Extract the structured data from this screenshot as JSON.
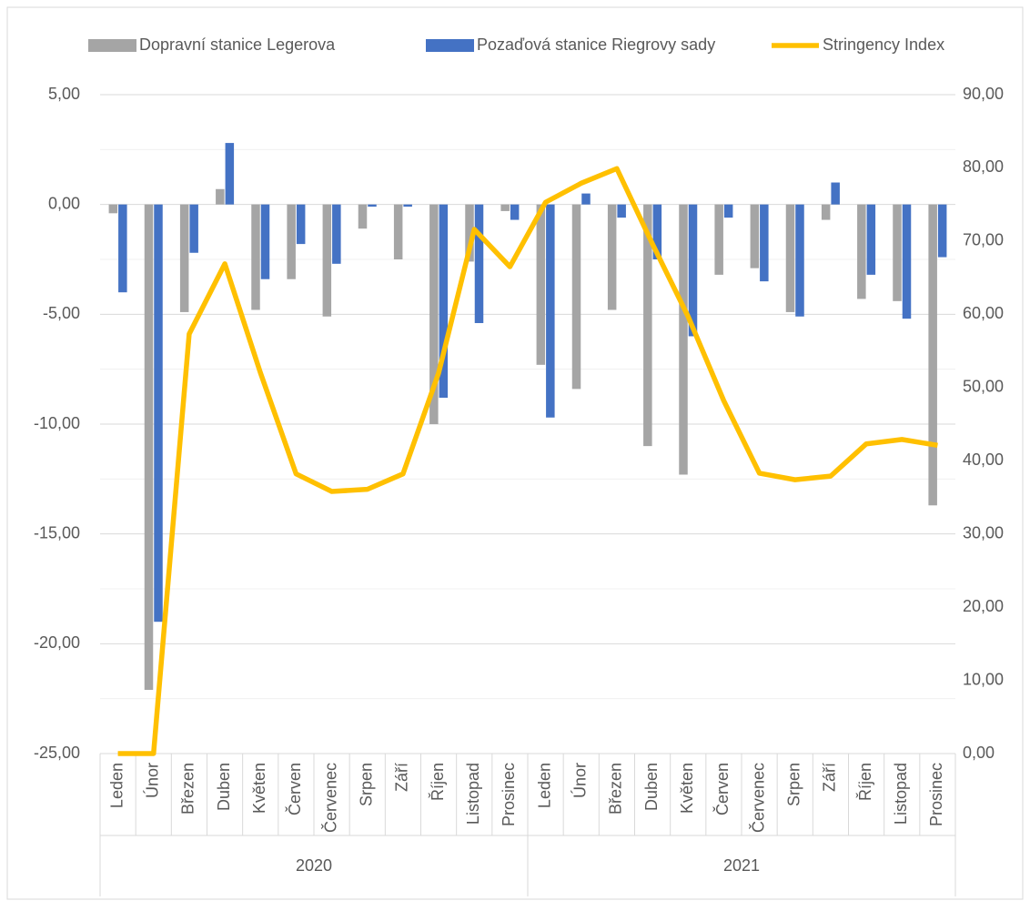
{
  "chart_data": {
    "type": "combo",
    "categories": [
      "Leden",
      "Únor",
      "Březen",
      "Duben",
      "Květen",
      "Červen",
      "Červenec",
      "Srpen",
      "Září",
      "Říjen",
      "Listopad",
      "Prosinec",
      "Leden",
      "Únor",
      "Březen",
      "Duben",
      "Květen",
      "Červen",
      "Červenec",
      "Srpen",
      "Září",
      "Říjen",
      "Listopad",
      "Prosinec"
    ],
    "groups": [
      "2020",
      "2021"
    ],
    "series": [
      {
        "name": "Dopravní stanice Legerova",
        "type": "bar",
        "color": "#a5a5a5",
        "values": [
          -0.4,
          -22.1,
          -4.9,
          0.7,
          -4.8,
          -3.4,
          -5.1,
          -1.1,
          -2.5,
          -10.0,
          -2.6,
          -0.3,
          -7.3,
          -8.4,
          -4.8,
          -11.0,
          -12.3,
          -3.2,
          -2.9,
          -4.9,
          -0.7,
          -4.3,
          -4.4,
          -13.7
        ]
      },
      {
        "name": "Pozaďová stanice Riegrovy sady",
        "type": "bar",
        "color": "#4472c4",
        "values": [
          -4.0,
          -19.0,
          -2.2,
          2.8,
          -3.4,
          -1.8,
          -2.7,
          -0.1,
          -0.1,
          -8.8,
          -5.4,
          -0.7,
          -9.7,
          0.5,
          -0.6,
          -2.5,
          -6.0,
          -0.6,
          -3.5,
          -5.1,
          1.0,
          -3.2,
          -5.2,
          -2.4
        ]
      },
      {
        "name": "Stringency Index",
        "type": "line",
        "axis": "y2",
        "color": "#ffc000",
        "values": [
          0,
          0,
          57.3,
          66.9,
          52.0,
          38.2,
          35.8,
          36.1,
          38.2,
          52.0,
          71.6,
          66.5,
          75.3,
          77.9,
          79.9,
          69.6,
          59.7,
          48.2,
          38.3,
          37.4,
          37.9,
          42.3,
          42.9,
          42.1
        ]
      }
    ],
    "ylim": [
      -25,
      5
    ],
    "yticks": [
      {
        "value": 5,
        "label": "5,00"
      },
      {
        "value": 0,
        "label": "0,00"
      },
      {
        "value": -5,
        "label": "-5,00"
      },
      {
        "value": -10,
        "label": "-10,00"
      },
      {
        "value": -15,
        "label": "-15,00"
      },
      {
        "value": -20,
        "label": "-20,00"
      },
      {
        "value": -25,
        "label": "-25,00"
      }
    ],
    "minor_yticks": [
      2.5,
      -2.5,
      -7.5,
      -12.5,
      -17.5,
      -22.5
    ],
    "y2lim": [
      0,
      90
    ],
    "y2ticks": [
      {
        "value": 90,
        "label": "90,00"
      },
      {
        "value": 80,
        "label": "80,00"
      },
      {
        "value": 70,
        "label": "70,00"
      },
      {
        "value": 60,
        "label": "60,00"
      },
      {
        "value": 50,
        "label": "50,00"
      },
      {
        "value": 40,
        "label": "40,00"
      },
      {
        "value": 30,
        "label": "30,00"
      },
      {
        "value": 20,
        "label": "20,00"
      },
      {
        "value": 10,
        "label": "10,00"
      },
      {
        "value": 0,
        "label": "0,00"
      }
    ],
    "grid": true,
    "legend": "top"
  }
}
